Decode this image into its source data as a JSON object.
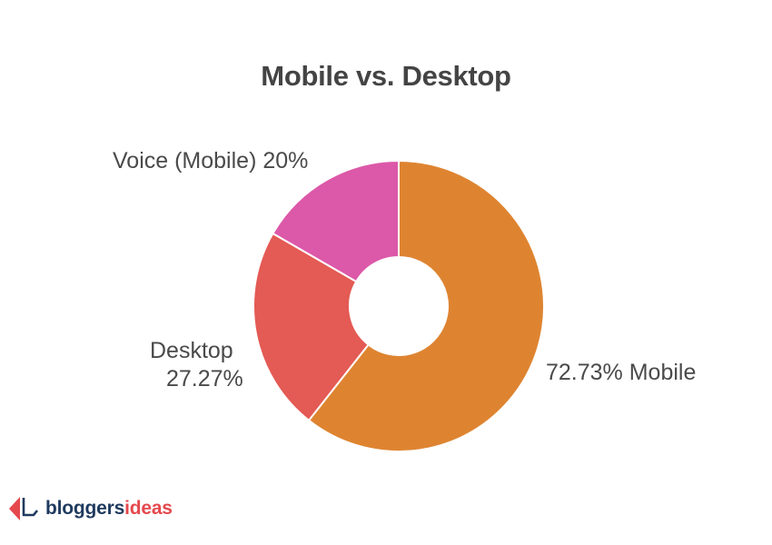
{
  "title": "Mobile vs. Desktop",
  "labels": {
    "voice": "Voice (Mobile) 20%",
    "desktop_line1": "Desktop",
    "desktop_line2": "27.27%",
    "mobile": "72.73% Mobile"
  },
  "logo": {
    "part1": "bloggers",
    "part2": "ideas",
    "color1": "#1f3a5f",
    "color2": "#e5484d"
  },
  "colors": {
    "mobile": "#de8431",
    "desktop": "#e45a54",
    "voice": "#dc58a8"
  },
  "chart_data": {
    "type": "pie",
    "subtype": "donut",
    "title": "Mobile vs. Desktop",
    "categories": [
      "Mobile",
      "Desktop",
      "Voice (Mobile)"
    ],
    "values": [
      72.73,
      27.27,
      20
    ],
    "value_labels": [
      "72.73%",
      "27.27%",
      "20%"
    ],
    "colors": [
      "#de8431",
      "#e45a54",
      "#dc58a8"
    ],
    "start_angle": "12 o'clock, clockwise",
    "legend": "none (direct labels)"
  }
}
